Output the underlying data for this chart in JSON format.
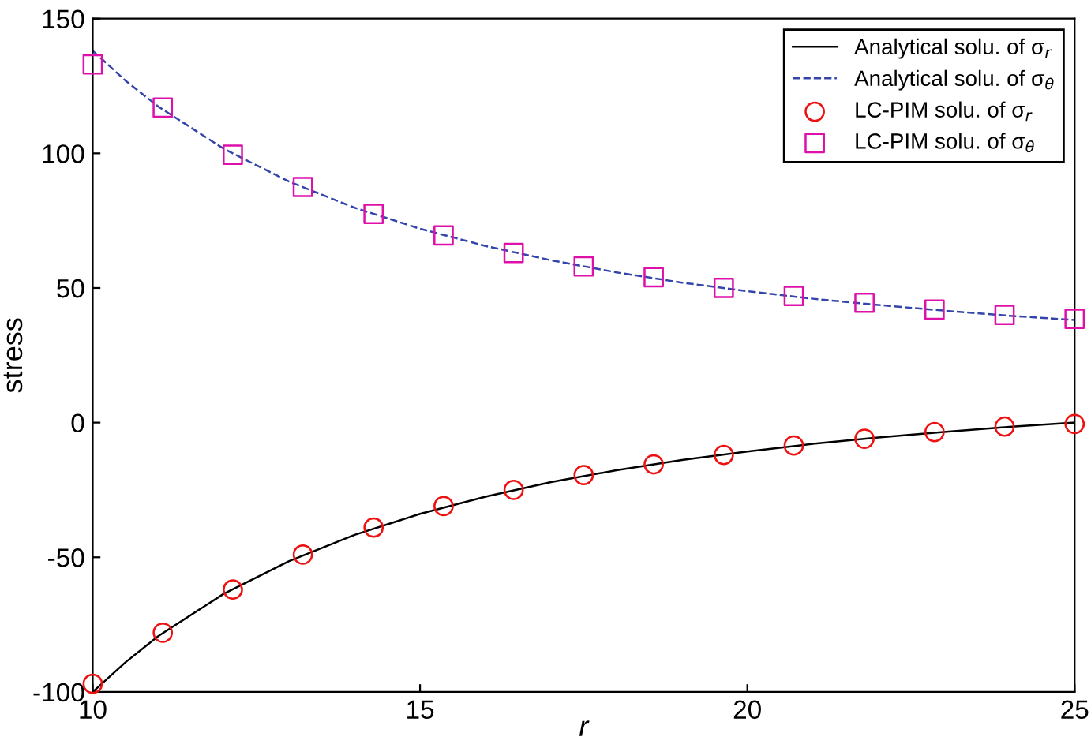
{
  "chart_data": {
    "type": "line",
    "xlabel": "r",
    "ylabel": "stress",
    "xlim": [
      10,
      25
    ],
    "ylim": [
      -100,
      150
    ],
    "xticks": [
      10,
      15,
      20,
      25
    ],
    "yticks": [
      -100,
      -50,
      0,
      50,
      100,
      150
    ],
    "grid": false,
    "legend": "top right",
    "series": [
      {
        "name": "Analytical solu. of σ$_{r}$",
        "color": "#000000",
        "line_style": "solid",
        "marker": "none",
        "x": [
          10,
          10.5,
          11,
          12,
          13,
          14,
          15,
          16,
          17,
          18,
          19,
          20,
          21,
          22,
          23,
          24,
          25
        ],
        "values": [
          -100,
          -89,
          -79.3,
          -63.6,
          -51.4,
          -41.7,
          -33.9,
          -27.5,
          -22.1,
          -17.7,
          -13.9,
          -10.7,
          -7.9,
          -5.5,
          -3.5,
          -1.6,
          0
        ]
      },
      {
        "name": "Analytical solu. of σ$_{θ}$",
        "color": "#3344aa",
        "line_style": "dashed",
        "marker": "none",
        "x": [
          10,
          10.5,
          11,
          12,
          13,
          14,
          15,
          16,
          17,
          18,
          19,
          20,
          21,
          22,
          23,
          24,
          25
        ],
        "values": [
          138.1,
          127,
          117.4,
          101.7,
          89.5,
          79.8,
          72,
          65.6,
          60.3,
          55.8,
          52,
          48.8,
          46,
          43.7,
          41.6,
          39.7,
          38.1
        ]
      },
      {
        "name": "LC-PIM solu. of σ$_{r}$",
        "type": "scatter",
        "color": "#ee1111",
        "marker": "circle",
        "x": [
          10,
          11.07,
          12.14,
          13.21,
          14.29,
          15.36,
          16.43,
          17.5,
          18.57,
          19.64,
          20.71,
          21.79,
          22.86,
          23.93,
          25
        ],
        "values": [
          -97,
          -78,
          -62,
          -49,
          -39,
          -31,
          -25,
          -19.5,
          -15.5,
          -12,
          -8.5,
          -6,
          -3.5,
          -1.5,
          -0.5
        ]
      },
      {
        "name": "LC-PIM solu. of σ$_{θ}$",
        "type": "scatter",
        "color": "#dd11aa",
        "marker": "square",
        "x": [
          10,
          11.07,
          12.14,
          13.21,
          14.29,
          15.36,
          16.43,
          17.5,
          18.57,
          19.64,
          20.71,
          21.79,
          22.86,
          23.93,
          25
        ],
        "values": [
          133,
          117,
          99.5,
          87.5,
          77.5,
          69.5,
          63,
          58,
          54,
          50,
          47,
          44.5,
          42,
          40,
          38.5
        ]
      }
    ]
  }
}
